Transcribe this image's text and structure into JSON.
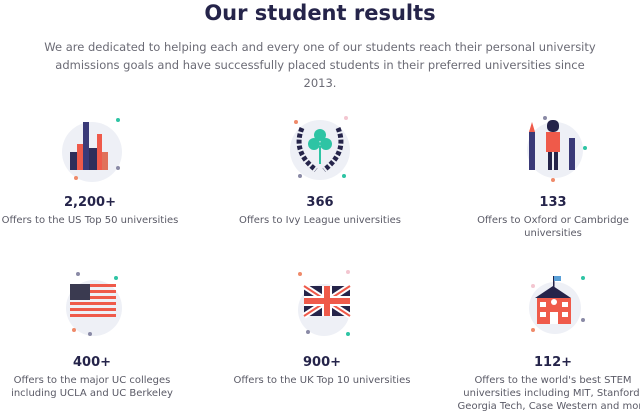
{
  "header": {
    "title": "Our student results",
    "subtitle_line1": "We are dedicated to helping each and every one of our students reach their personal university",
    "subtitle_line2": "admissions goals and have successfully placed students in their preferred universities since 2013."
  },
  "colors": {
    "navy": "#25244a",
    "red": "#ef5a4a",
    "teal": "#2ec4a4",
    "bg_blob": "#eef0f6"
  },
  "stats": [
    {
      "icon": "city-skyline-icon",
      "value": "2,200+",
      "caption": "Offers to the US Top 50 universities"
    },
    {
      "icon": "laurel-shamrock-icon",
      "value": "366",
      "caption": "Offers to Ivy League universities"
    },
    {
      "icon": "london-guard-icon",
      "value": "133",
      "caption": "Offers to Oxford or Cambridge universities"
    },
    {
      "icon": "us-flag-icon",
      "value": "400+",
      "caption": "Offers to the major UC colleges including UCLA and UC Berkeley"
    },
    {
      "icon": "uk-flag-icon",
      "value": "900+",
      "caption": "Offers to the UK Top 10 universities"
    },
    {
      "icon": "school-building-icon",
      "value": "112+",
      "caption": "Offers to the world's best STEM universities including MIT, Stanford, Georgia Tech, Case Western and more"
    }
  ]
}
